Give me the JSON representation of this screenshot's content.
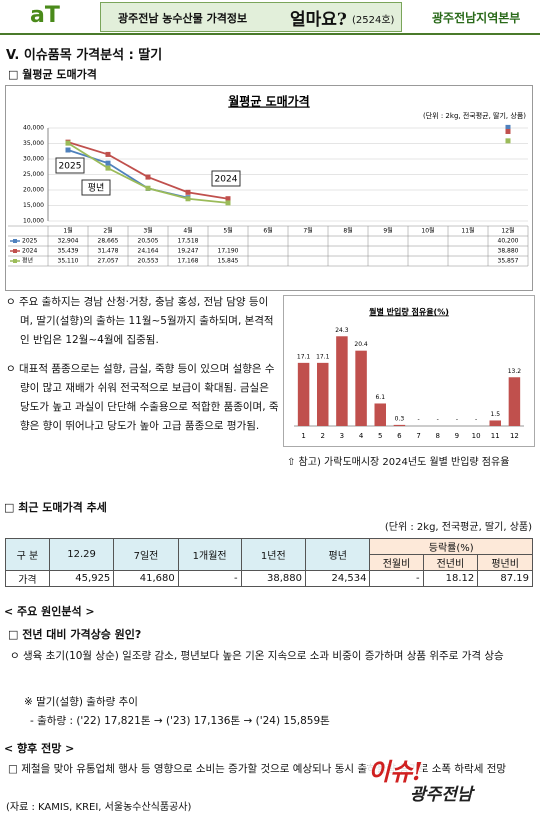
{
  "header": {
    "logo": "aT",
    "title": "광주전남 농수산물 가격정보",
    "brand": "얼마요?",
    "issue": "(2524호)",
    "org": "광주전남지역본부"
  },
  "section_title": "V. 이슈품목 가격분석 : 딸기",
  "sub1": "□ 월평균 도매가격",
  "chart_data": [
    {
      "type": "line",
      "title": "월평균 도매가격",
      "unit": "(단위 : 2kg, 전국평균, 딸기, 상품)",
      "categories": [
        "1월",
        "2월",
        "3월",
        "4월",
        "5월",
        "6월",
        "7월",
        "8월",
        "9월",
        "10월",
        "11월",
        "12월"
      ],
      "series": [
        {
          "name": "2025",
          "color": "#4f81bd",
          "values": [
            32904,
            28665,
            20505,
            17518,
            null,
            null,
            null,
            null,
            null,
            null,
            null,
            40200
          ],
          "value_labels": [
            "32,904",
            "28,665",
            "20,505",
            "17,518",
            null,
            null,
            null,
            null,
            null,
            null,
            null,
            "40,200"
          ]
        },
        {
          "name": "2024",
          "color": "#c0504d",
          "values": [
            35439,
            31478,
            24164,
            19247,
            17190,
            null,
            null,
            null,
            null,
            null,
            null,
            38880
          ],
          "value_labels": [
            "35,439",
            "31,478",
            "24,164",
            "19,247",
            "17,190",
            null,
            null,
            null,
            null,
            null,
            null,
            "38,880"
          ]
        },
        {
          "name": "평년",
          "color": "#9bbb59",
          "values": [
            35110,
            27057,
            20553,
            17168,
            15845,
            null,
            null,
            null,
            null,
            null,
            null,
            35857
          ],
          "value_labels": [
            "35,110",
            "27,057",
            "20,553",
            "17,168",
            "15,845",
            null,
            null,
            null,
            null,
            null,
            null,
            "35,857"
          ]
        }
      ],
      "ylim": [
        10000,
        40000
      ],
      "yticks": [
        {
          "value": 10000,
          "label": "10,000"
        },
        {
          "value": 15000,
          "label": "15,000"
        },
        {
          "value": 20000,
          "label": "20,000"
        },
        {
          "value": 25000,
          "label": "25,000"
        },
        {
          "value": 30000,
          "label": "30,000"
        },
        {
          "value": 35000,
          "label": "35,000"
        },
        {
          "value": 40000,
          "label": "40,000"
        }
      ],
      "grid": true,
      "annotations": [
        "2025",
        "평년",
        "2024"
      ]
    },
    {
      "type": "bar",
      "title": "월별 반입량 점유율(%)",
      "categories": [
        "1",
        "2",
        "3",
        "4",
        "5",
        "6",
        "7",
        "8",
        "9",
        "10",
        "11",
        "12"
      ],
      "values": [
        17.1,
        17.1,
        24.3,
        20.4,
        6.1,
        0.3,
        null,
        null,
        null,
        null,
        1.5,
        13.2
      ],
      "value_labels": [
        "17.1",
        "17.1",
        "24.3",
        "20.4",
        "6.1",
        "0.3",
        "-",
        "-",
        "-",
        "-",
        "1.5",
        "13.2"
      ],
      "color": "#c0504d",
      "ylim": [
        0,
        26
      ]
    }
  ],
  "paragraphs": [
    "ㅇ 주요 출하지는 경남 산청·거창, 충남 홍성, 전남 담양 등이며, 딸기(설향)의 출하는 11월~5월까지 출하되며, 본격적인 반입은 12월~4월에 집중됨.",
    "ㅇ 대표적 품종으로는 설향, 금실, 죽향 등이 있으며 설향은 수량이 많고 재배가 쉬워 전국적으로 보급이 확대됨. 금실은 당도가 높고 과실이 단단해 수출용으로 적합한 품종이며, 죽향은 향이 뛰어나고 당도가 높아 고급 품종으로 평가됨."
  ],
  "chart2_caption": "⇧ 참고) 가락도매시장 2024년도 월별 반입량 점유율",
  "sub2": "□ 최근 도매가격 추세",
  "table": {
    "unit": "(단위 : 2kg, 전국평균, 딸기, 상품)",
    "header": [
      "구 분",
      "12.29",
      "7일전",
      "1개월전",
      "1년전",
      "평년",
      "등락률(%)"
    ],
    "subheader": [
      "전월비",
      "전년비",
      "평년비"
    ],
    "rows": [
      [
        "가격",
        "45,925",
        "41,680",
        "-",
        "38,880",
        "24,534",
        "-",
        "18.12",
        "87.19"
      ]
    ]
  },
  "cause_heading": "< 주요 원인분석 >",
  "cause_title": "□ 전년 대비 가격상승 원인?",
  "cause_text": "ㅇ 생육 초기(10월 상순) 일조량 감소, 평년보다 높은 기온 지속으로 소과 비중이 증가하며 상품 위주로 가격 상승",
  "note_title": "※ 딸기(설향) 출하량 추이",
  "note_text": "- 출하량 : ('22) 17,821톤 → ('23) 17,136톤 → ('24) 15,859톤",
  "outlook_heading": "< 향후 전망 >",
  "outlook_text": "□ 제철을 맞아 유통업체 행사 등 영향으로 소비는 증가할 것으로 예상되나 동시 출하물량 증가로 소폭 하락세 전망",
  "source": "(자료 : KAMIS, KREI, 서울농수산식품공사)",
  "stamp": [
    "이슈!",
    "광주전남"
  ]
}
